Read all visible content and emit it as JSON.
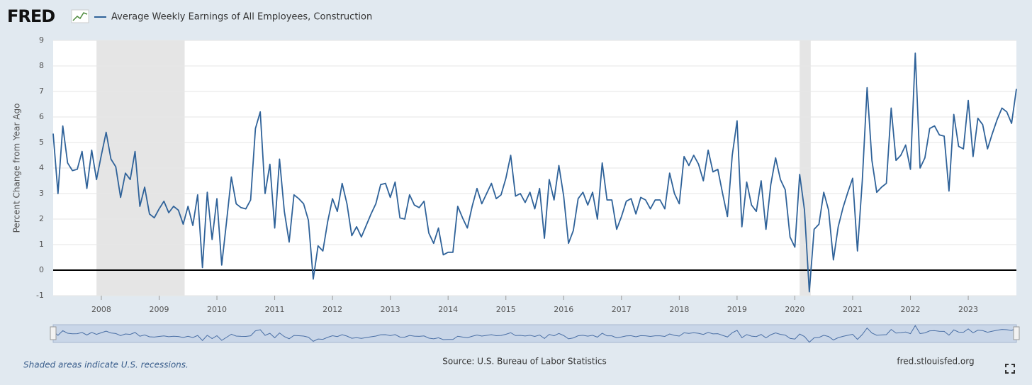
{
  "chart_data": {
    "type": "line",
    "logo": "FRED",
    "title": "Average Weekly Earnings of All Employees, Construction",
    "y_label": "Percent Change from Year Ago",
    "note": "Shaded areas indicate U.S. recessions.",
    "source": "Source: U.S. Bureau of Labor Statistics",
    "site": "fred.stlouisfed.org",
    "ylim": [
      -1,
      9
    ],
    "yticks": [
      -1,
      0,
      1,
      2,
      3,
      4,
      5,
      6,
      7,
      8,
      9
    ],
    "xlim": [
      "2007-03",
      "2023-11"
    ],
    "xticks": [
      2008,
      2009,
      2010,
      2011,
      2012,
      2013,
      2014,
      2015,
      2016,
      2017,
      2018,
      2019,
      2020,
      2021,
      2022,
      2023
    ],
    "grid": true,
    "recessions": [
      {
        "start": "2007-12",
        "end": "2009-06"
      },
      {
        "start": "2020-02",
        "end": "2020-04"
      }
    ],
    "x": [
      "2007-03",
      "2007-04",
      "2007-05",
      "2007-06",
      "2007-07",
      "2007-08",
      "2007-09",
      "2007-10",
      "2007-11",
      "2007-12",
      "2008-01",
      "2008-02",
      "2008-03",
      "2008-04",
      "2008-05",
      "2008-06",
      "2008-07",
      "2008-08",
      "2008-09",
      "2008-10",
      "2008-11",
      "2008-12",
      "2009-01",
      "2009-02",
      "2009-03",
      "2009-04",
      "2009-05",
      "2009-06",
      "2009-07",
      "2009-08",
      "2009-09",
      "2009-10",
      "2009-11",
      "2009-12",
      "2010-01",
      "2010-02",
      "2010-03",
      "2010-04",
      "2010-05",
      "2010-06",
      "2010-07",
      "2010-08",
      "2010-09",
      "2010-10",
      "2010-11",
      "2010-12",
      "2011-01",
      "2011-02",
      "2011-03",
      "2011-04",
      "2011-05",
      "2011-06",
      "2011-07",
      "2011-08",
      "2011-09",
      "2011-10",
      "2011-11",
      "2011-12",
      "2012-01",
      "2012-02",
      "2012-03",
      "2012-04",
      "2012-05",
      "2012-06",
      "2012-07",
      "2012-08",
      "2012-09",
      "2012-10",
      "2012-11",
      "2012-12",
      "2013-01",
      "2013-02",
      "2013-03",
      "2013-04",
      "2013-05",
      "2013-06",
      "2013-07",
      "2013-08",
      "2013-09",
      "2013-10",
      "2013-11",
      "2013-12",
      "2014-01",
      "2014-02",
      "2014-03",
      "2014-04",
      "2014-05",
      "2014-06",
      "2014-07",
      "2014-08",
      "2014-09",
      "2014-10",
      "2014-11",
      "2014-12",
      "2015-01",
      "2015-02",
      "2015-03",
      "2015-04",
      "2015-05",
      "2015-06",
      "2015-07",
      "2015-08",
      "2015-09",
      "2015-10",
      "2015-11",
      "2015-12",
      "2016-01",
      "2016-02",
      "2016-03",
      "2016-04",
      "2016-05",
      "2016-06",
      "2016-07",
      "2016-08",
      "2016-09",
      "2016-10",
      "2016-11",
      "2016-12",
      "2017-01",
      "2017-02",
      "2017-03",
      "2017-04",
      "2017-05",
      "2017-06",
      "2017-07",
      "2017-08",
      "2017-09",
      "2017-10",
      "2017-11",
      "2017-12",
      "2018-01",
      "2018-02",
      "2018-03",
      "2018-04",
      "2018-05",
      "2018-06",
      "2018-07",
      "2018-08",
      "2018-09",
      "2018-10",
      "2018-11",
      "2018-12",
      "2019-01",
      "2019-02",
      "2019-03",
      "2019-04",
      "2019-05",
      "2019-06",
      "2019-07",
      "2019-08",
      "2019-09",
      "2019-10",
      "2019-11",
      "2019-12",
      "2020-01",
      "2020-02",
      "2020-03",
      "2020-04",
      "2020-05",
      "2020-06",
      "2020-07",
      "2020-08",
      "2020-09",
      "2020-10",
      "2020-11",
      "2020-12",
      "2021-01",
      "2021-02",
      "2021-03",
      "2021-04",
      "2021-05",
      "2021-06",
      "2021-07",
      "2021-08",
      "2021-09",
      "2021-10",
      "2021-11",
      "2021-12",
      "2022-01",
      "2022-02",
      "2022-03",
      "2022-04",
      "2022-05",
      "2022-06",
      "2022-07",
      "2022-08",
      "2022-09",
      "2022-10",
      "2022-11",
      "2022-12",
      "2023-01",
      "2023-02",
      "2023-03",
      "2023-04",
      "2023-05",
      "2023-06",
      "2023-07",
      "2023-08",
      "2023-09",
      "2023-10",
      "2023-11"
    ],
    "series": [
      {
        "name": "Average Weekly Earnings of All Employees, Construction",
        "color": "#2f6299",
        "values": [
          5.35,
          3.0,
          5.65,
          4.2,
          3.9,
          3.95,
          4.65,
          3.2,
          4.7,
          3.55,
          4.5,
          5.4,
          4.35,
          4.05,
          2.85,
          3.8,
          3.55,
          4.65,
          2.5,
          3.25,
          2.2,
          2.05,
          2.4,
          2.7,
          2.25,
          2.5,
          2.35,
          1.8,
          2.5,
          1.75,
          2.95,
          0.1,
          3.05,
          1.2,
          2.8,
          0.2,
          1.9,
          3.65,
          2.6,
          2.45,
          2.4,
          2.75,
          5.55,
          6.2,
          3.0,
          4.15,
          1.65,
          4.35,
          2.3,
          1.1,
          2.95,
          2.8,
          2.6,
          1.95,
          -0.35,
          0.95,
          0.75,
          1.9,
          2.8,
          2.3,
          3.4,
          2.6,
          1.35,
          1.7,
          1.3,
          1.75,
          2.2,
          2.6,
          3.35,
          3.4,
          2.85,
          3.45,
          2.05,
          2.0,
          2.95,
          2.55,
          2.45,
          2.7,
          1.45,
          1.05,
          1.65,
          0.6,
          0.7,
          0.7,
          2.5,
          2.05,
          1.65,
          2.5,
          3.2,
          2.6,
          3.0,
          3.4,
          2.8,
          2.95,
          3.6,
          4.5,
          2.9,
          3.0,
          2.65,
          3.05,
          2.4,
          3.2,
          1.25,
          3.55,
          2.75,
          4.1,
          2.9,
          1.05,
          1.55,
          2.8,
          3.05,
          2.55,
          3.05,
          2.0,
          4.2,
          2.75,
          2.75,
          1.6,
          2.1,
          2.7,
          2.8,
          2.2,
          2.85,
          2.75,
          2.4,
          2.75,
          2.75,
          2.4,
          3.8,
          3.0,
          2.6,
          4.45,
          4.1,
          4.5,
          4.15,
          3.5,
          4.7,
          3.85,
          3.95,
          3.0,
          2.1,
          4.5,
          5.85,
          1.7,
          3.45,
          2.55,
          2.3,
          3.5,
          1.6,
          3.35,
          4.4,
          3.55,
          3.15,
          1.3,
          0.9,
          3.75,
          2.35,
          -0.85,
          1.6,
          1.8,
          3.05,
          2.35,
          0.4,
          1.7,
          2.45,
          3.05,
          3.6,
          0.75,
          3.5,
          7.15,
          4.3,
          3.05,
          3.25,
          3.4,
          6.35,
          4.3,
          4.5,
          4.9,
          3.95,
          8.5,
          4.0,
          4.4,
          5.55,
          5.65,
          5.3,
          5.25,
          3.1,
          6.1,
          4.85,
          4.75,
          6.65,
          4.45,
          5.95,
          5.7,
          4.75,
          5.35,
          5.9,
          6.35,
          6.2,
          5.75,
          7.1
        ]
      }
    ]
  }
}
